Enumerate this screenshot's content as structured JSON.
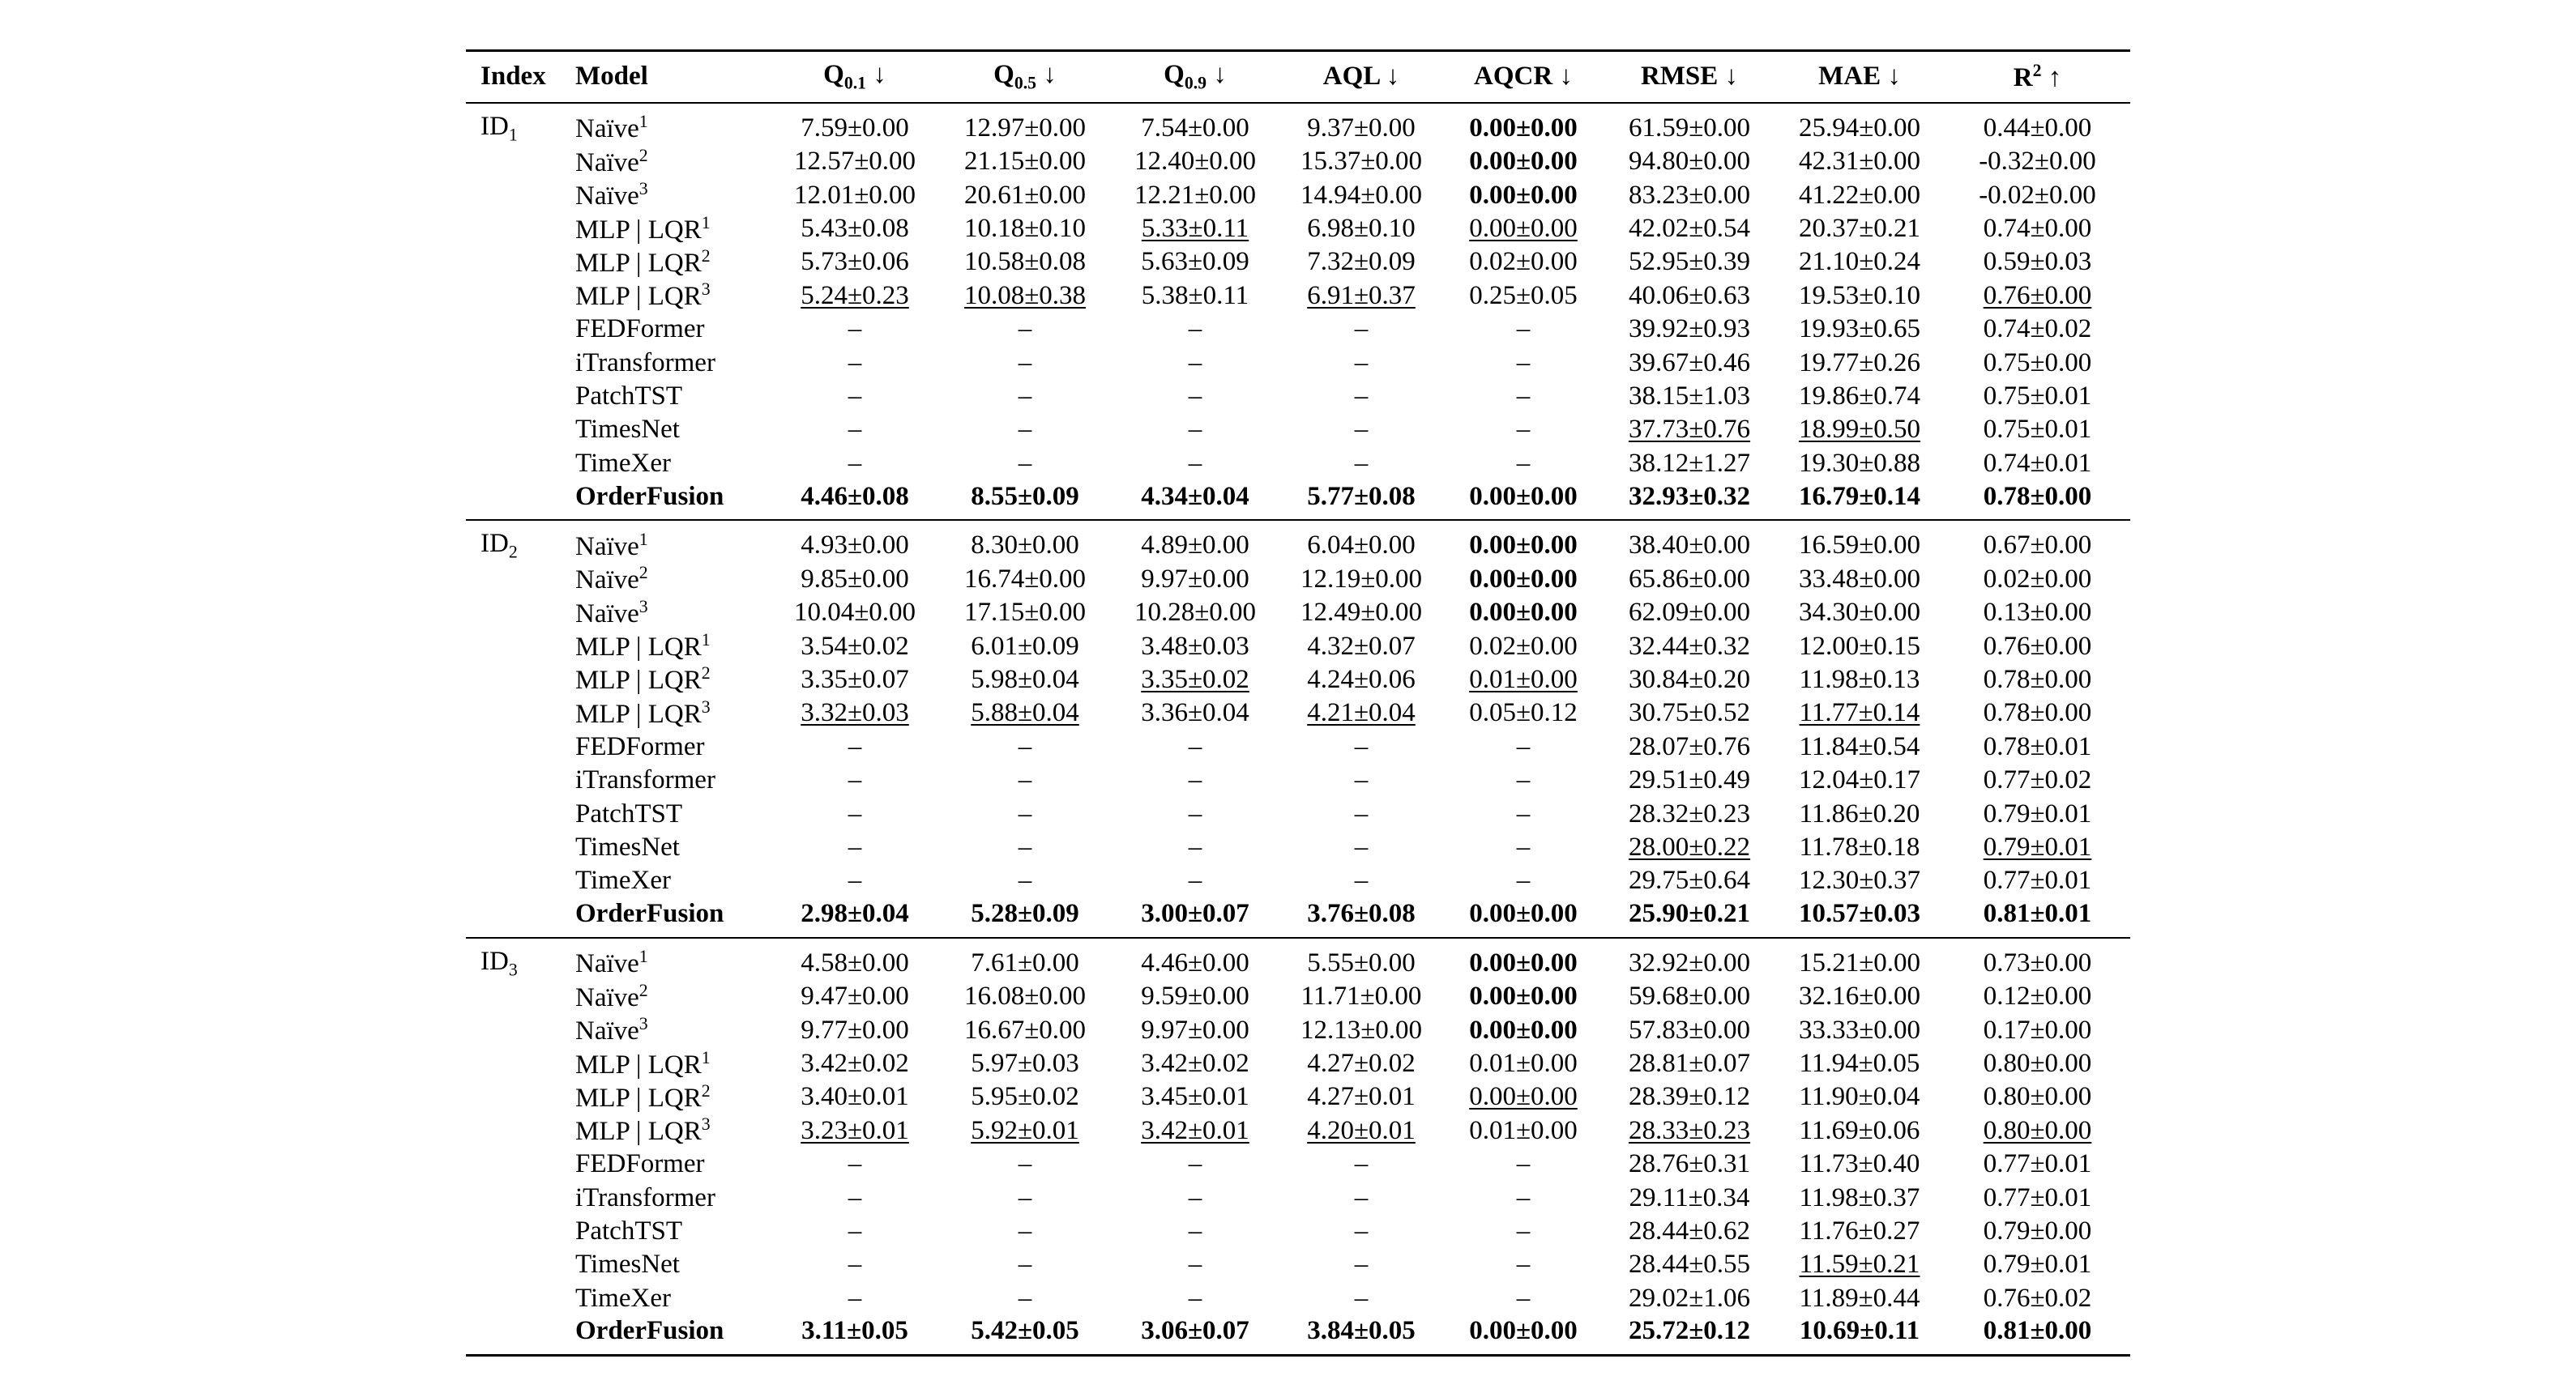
{
  "table": {
    "headers": [
      {
        "base": "Index",
        "sub": "",
        "sup": "",
        "arrow": ""
      },
      {
        "base": "Model",
        "sub": "",
        "sup": "",
        "arrow": ""
      },
      {
        "base": "Q",
        "sub": "0.1",
        "sup": "",
        "arrow": "↓"
      },
      {
        "base": "Q",
        "sub": "0.5",
        "sup": "",
        "arrow": "↓"
      },
      {
        "base": "Q",
        "sub": "0.9",
        "sup": "",
        "arrow": "↓"
      },
      {
        "base": "AQL",
        "sub": "",
        "sup": "",
        "arrow": "↓"
      },
      {
        "base": "AQCR",
        "sub": "",
        "sup": "",
        "arrow": "↓"
      },
      {
        "base": "RMSE",
        "sub": "",
        "sup": "",
        "arrow": "↓"
      },
      {
        "base": "MAE",
        "sub": "",
        "sup": "",
        "arrow": "↓"
      },
      {
        "base": "R",
        "sub": "",
        "sup": "2",
        "arrow": "↑"
      }
    ],
    "groups": [
      {
        "index": {
          "base": "ID",
          "sub": "1"
        },
        "rows": [
          {
            "model": {
              "name": "Naïve",
              "sup": "1"
            },
            "values": [
              "7.59±0.00",
              "12.97±0.00",
              "7.54±0.00",
              "9.37±0.00",
              "0.00±0.00",
              "61.59±0.00",
              "25.94±0.00",
              "0.44±0.00"
            ],
            "bold": [
              4
            ],
            "underline": []
          },
          {
            "model": {
              "name": "Naïve",
              "sup": "2"
            },
            "values": [
              "12.57±0.00",
              "21.15±0.00",
              "12.40±0.00",
              "15.37±0.00",
              "0.00±0.00",
              "94.80±0.00",
              "42.31±0.00",
              "-0.32±0.00"
            ],
            "bold": [
              4
            ],
            "underline": []
          },
          {
            "model": {
              "name": "Naïve",
              "sup": "3"
            },
            "values": [
              "12.01±0.00",
              "20.61±0.00",
              "12.21±0.00",
              "14.94±0.00",
              "0.00±0.00",
              "83.23±0.00",
              "41.22±0.00",
              "-0.02±0.00"
            ],
            "bold": [
              4
            ],
            "underline": []
          },
          {
            "model": {
              "name": "MLP | LQR",
              "sup": "1"
            },
            "values": [
              "5.43±0.08",
              "10.18±0.10",
              "5.33±0.11",
              "6.98±0.10",
              "0.00±0.00",
              "42.02±0.54",
              "20.37±0.21",
              "0.74±0.00"
            ],
            "bold": [],
            "underline": [
              2,
              4
            ]
          },
          {
            "model": {
              "name": "MLP | LQR",
              "sup": "2"
            },
            "values": [
              "5.73±0.06",
              "10.58±0.08",
              "5.63±0.09",
              "7.32±0.09",
              "0.02±0.00",
              "52.95±0.39",
              "21.10±0.24",
              "0.59±0.03"
            ],
            "bold": [],
            "underline": []
          },
          {
            "model": {
              "name": "MLP | LQR",
              "sup": "3"
            },
            "values": [
              "5.24±0.23",
              "10.08±0.38",
              "5.38±0.11",
              "6.91±0.37",
              "0.25±0.05",
              "40.06±0.63",
              "19.53±0.10",
              "0.76±0.00"
            ],
            "bold": [],
            "underline": [
              0,
              1,
              3,
              7
            ]
          },
          {
            "model": {
              "name": "FEDFormer",
              "sup": ""
            },
            "values": [
              "–",
              "–",
              "–",
              "–",
              "–",
              "39.92±0.93",
              "19.93±0.65",
              "0.74±0.02"
            ],
            "bold": [],
            "underline": []
          },
          {
            "model": {
              "name": "iTransformer",
              "sup": ""
            },
            "values": [
              "–",
              "–",
              "–",
              "–",
              "–",
              "39.67±0.46",
              "19.77±0.26",
              "0.75±0.00"
            ],
            "bold": [],
            "underline": []
          },
          {
            "model": {
              "name": "PatchTST",
              "sup": ""
            },
            "values": [
              "–",
              "–",
              "–",
              "–",
              "–",
              "38.15±1.03",
              "19.86±0.74",
              "0.75±0.01"
            ],
            "bold": [],
            "underline": []
          },
          {
            "model": {
              "name": "TimesNet",
              "sup": ""
            },
            "values": [
              "–",
              "–",
              "–",
              "–",
              "–",
              "37.73±0.76",
              "18.99±0.50",
              "0.75±0.01"
            ],
            "bold": [],
            "underline": [
              5,
              6
            ]
          },
          {
            "model": {
              "name": "TimeXer",
              "sup": ""
            },
            "values": [
              "–",
              "–",
              "–",
              "–",
              "–",
              "38.12±1.27",
              "19.30±0.88",
              "0.74±0.01"
            ],
            "bold": [],
            "underline": []
          },
          {
            "model": {
              "name": "OrderFusion",
              "sup": ""
            },
            "values": [
              "4.46±0.08",
              "8.55±0.09",
              "4.34±0.04",
              "5.77±0.08",
              "0.00±0.00",
              "32.93±0.32",
              "16.79±0.14",
              "0.78±0.00"
            ],
            "bold": [
              0,
              1,
              2,
              3,
              4,
              5,
              6,
              7
            ],
            "underline": []
          }
        ]
      },
      {
        "index": {
          "base": "ID",
          "sub": "2"
        },
        "rows": [
          {
            "model": {
              "name": "Naïve",
              "sup": "1"
            },
            "values": [
              "4.93±0.00",
              "8.30±0.00",
              "4.89±0.00",
              "6.04±0.00",
              "0.00±0.00",
              "38.40±0.00",
              "16.59±0.00",
              "0.67±0.00"
            ],
            "bold": [
              4
            ],
            "underline": []
          },
          {
            "model": {
              "name": "Naïve",
              "sup": "2"
            },
            "values": [
              "9.85±0.00",
              "16.74±0.00",
              "9.97±0.00",
              "12.19±0.00",
              "0.00±0.00",
              "65.86±0.00",
              "33.48±0.00",
              "0.02±0.00"
            ],
            "bold": [
              4
            ],
            "underline": []
          },
          {
            "model": {
              "name": "Naïve",
              "sup": "3"
            },
            "values": [
              "10.04±0.00",
              "17.15±0.00",
              "10.28±0.00",
              "12.49±0.00",
              "0.00±0.00",
              "62.09±0.00",
              "34.30±0.00",
              "0.13±0.00"
            ],
            "bold": [
              4
            ],
            "underline": []
          },
          {
            "model": {
              "name": "MLP | LQR",
              "sup": "1"
            },
            "values": [
              "3.54±0.02",
              "6.01±0.09",
              "3.48±0.03",
              "4.32±0.07",
              "0.02±0.00",
              "32.44±0.32",
              "12.00±0.15",
              "0.76±0.00"
            ],
            "bold": [],
            "underline": []
          },
          {
            "model": {
              "name": "MLP | LQR",
              "sup": "2"
            },
            "values": [
              "3.35±0.07",
              "5.98±0.04",
              "3.35±0.02",
              "4.24±0.06",
              "0.01±0.00",
              "30.84±0.20",
              "11.98±0.13",
              "0.78±0.00"
            ],
            "bold": [],
            "underline": [
              2,
              4
            ]
          },
          {
            "model": {
              "name": "MLP | LQR",
              "sup": "3"
            },
            "values": [
              "3.32±0.03",
              "5.88±0.04",
              "3.36±0.04",
              "4.21±0.04",
              "0.05±0.12",
              "30.75±0.52",
              "11.77±0.14",
              "0.78±0.00"
            ],
            "bold": [],
            "underline": [
              0,
              1,
              3,
              6
            ]
          },
          {
            "model": {
              "name": "FEDFormer",
              "sup": ""
            },
            "values": [
              "–",
              "–",
              "–",
              "–",
              "–",
              "28.07±0.76",
              "11.84±0.54",
              "0.78±0.01"
            ],
            "bold": [],
            "underline": []
          },
          {
            "model": {
              "name": "iTransformer",
              "sup": ""
            },
            "values": [
              "–",
              "–",
              "–",
              "–",
              "–",
              "29.51±0.49",
              "12.04±0.17",
              "0.77±0.02"
            ],
            "bold": [],
            "underline": []
          },
          {
            "model": {
              "name": "PatchTST",
              "sup": ""
            },
            "values": [
              "–",
              "–",
              "–",
              "–",
              "–",
              "28.32±0.23",
              "11.86±0.20",
              "0.79±0.01"
            ],
            "bold": [],
            "underline": []
          },
          {
            "model": {
              "name": "TimesNet",
              "sup": ""
            },
            "values": [
              "–",
              "–",
              "–",
              "–",
              "–",
              "28.00±0.22",
              "11.78±0.18",
              "0.79±0.01"
            ],
            "bold": [],
            "underline": [
              5,
              7
            ]
          },
          {
            "model": {
              "name": "TimeXer",
              "sup": ""
            },
            "values": [
              "–",
              "–",
              "–",
              "–",
              "–",
              "29.75±0.64",
              "12.30±0.37",
              "0.77±0.01"
            ],
            "bold": [],
            "underline": []
          },
          {
            "model": {
              "name": "OrderFusion",
              "sup": ""
            },
            "values": [
              "2.98±0.04",
              "5.28±0.09",
              "3.00±0.07",
              "3.76±0.08",
              "0.00±0.00",
              "25.90±0.21",
              "10.57±0.03",
              "0.81±0.01"
            ],
            "bold": [
              0,
              1,
              2,
              3,
              4,
              5,
              6,
              7
            ],
            "underline": []
          }
        ]
      },
      {
        "index": {
          "base": "ID",
          "sub": "3"
        },
        "rows": [
          {
            "model": {
              "name": "Naïve",
              "sup": "1"
            },
            "values": [
              "4.58±0.00",
              "7.61±0.00",
              "4.46±0.00",
              "5.55±0.00",
              "0.00±0.00",
              "32.92±0.00",
              "15.21±0.00",
              "0.73±0.00"
            ],
            "bold": [
              4
            ],
            "underline": []
          },
          {
            "model": {
              "name": "Naïve",
              "sup": "2"
            },
            "values": [
              "9.47±0.00",
              "16.08±0.00",
              "9.59±0.00",
              "11.71±0.00",
              "0.00±0.00",
              "59.68±0.00",
              "32.16±0.00",
              "0.12±0.00"
            ],
            "bold": [
              4
            ],
            "underline": []
          },
          {
            "model": {
              "name": "Naïve",
              "sup": "3"
            },
            "values": [
              "9.77±0.00",
              "16.67±0.00",
              "9.97±0.00",
              "12.13±0.00",
              "0.00±0.00",
              "57.83±0.00",
              "33.33±0.00",
              "0.17±0.00"
            ],
            "bold": [
              4
            ],
            "underline": []
          },
          {
            "model": {
              "name": "MLP | LQR",
              "sup": "1"
            },
            "values": [
              "3.42±0.02",
              "5.97±0.03",
              "3.42±0.02",
              "4.27±0.02",
              "0.01±0.00",
              "28.81±0.07",
              "11.94±0.05",
              "0.80±0.00"
            ],
            "bold": [],
            "underline": []
          },
          {
            "model": {
              "name": "MLP | LQR",
              "sup": "2"
            },
            "values": [
              "3.40±0.01",
              "5.95±0.02",
              "3.45±0.01",
              "4.27±0.01",
              "0.00±0.00",
              "28.39±0.12",
              "11.90±0.04",
              "0.80±0.00"
            ],
            "bold": [],
            "underline": [
              4
            ]
          },
          {
            "model": {
              "name": "MLP | LQR",
              "sup": "3"
            },
            "values": [
              "3.23±0.01",
              "5.92±0.01",
              "3.42±0.01",
              "4.20±0.01",
              "0.01±0.00",
              "28.33±0.23",
              "11.69±0.06",
              "0.80±0.00"
            ],
            "bold": [],
            "underline": [
              0,
              1,
              2,
              3,
              5,
              7
            ]
          },
          {
            "model": {
              "name": "FEDFormer",
              "sup": ""
            },
            "values": [
              "–",
              "–",
              "–",
              "–",
              "–",
              "28.76±0.31",
              "11.73±0.40",
              "0.77±0.01"
            ],
            "bold": [],
            "underline": []
          },
          {
            "model": {
              "name": "iTransformer",
              "sup": ""
            },
            "values": [
              "–",
              "–",
              "–",
              "–",
              "–",
              "29.11±0.34",
              "11.98±0.37",
              "0.77±0.01"
            ],
            "bold": [],
            "underline": []
          },
          {
            "model": {
              "name": "PatchTST",
              "sup": ""
            },
            "values": [
              "–",
              "–",
              "–",
              "–",
              "–",
              "28.44±0.62",
              "11.76±0.27",
              "0.79±0.00"
            ],
            "bold": [],
            "underline": []
          },
          {
            "model": {
              "name": "TimesNet",
              "sup": ""
            },
            "values": [
              "–",
              "–",
              "–",
              "–",
              "–",
              "28.44±0.55",
              "11.59±0.21",
              "0.79±0.01"
            ],
            "bold": [],
            "underline": [
              6
            ]
          },
          {
            "model": {
              "name": "TimeXer",
              "sup": ""
            },
            "values": [
              "–",
              "–",
              "–",
              "–",
              "–",
              "29.02±1.06",
              "11.89±0.44",
              "0.76±0.02"
            ],
            "bold": [],
            "underline": []
          },
          {
            "model": {
              "name": "OrderFusion",
              "sup": ""
            },
            "values": [
              "3.11±0.05",
              "5.42±0.05",
              "3.06±0.07",
              "3.84±0.05",
              "0.00±0.00",
              "25.72±0.12",
              "10.69±0.11",
              "0.81±0.00"
            ],
            "bold": [
              0,
              1,
              2,
              3,
              4,
              5,
              6,
              7
            ],
            "underline": []
          }
        ]
      }
    ]
  }
}
